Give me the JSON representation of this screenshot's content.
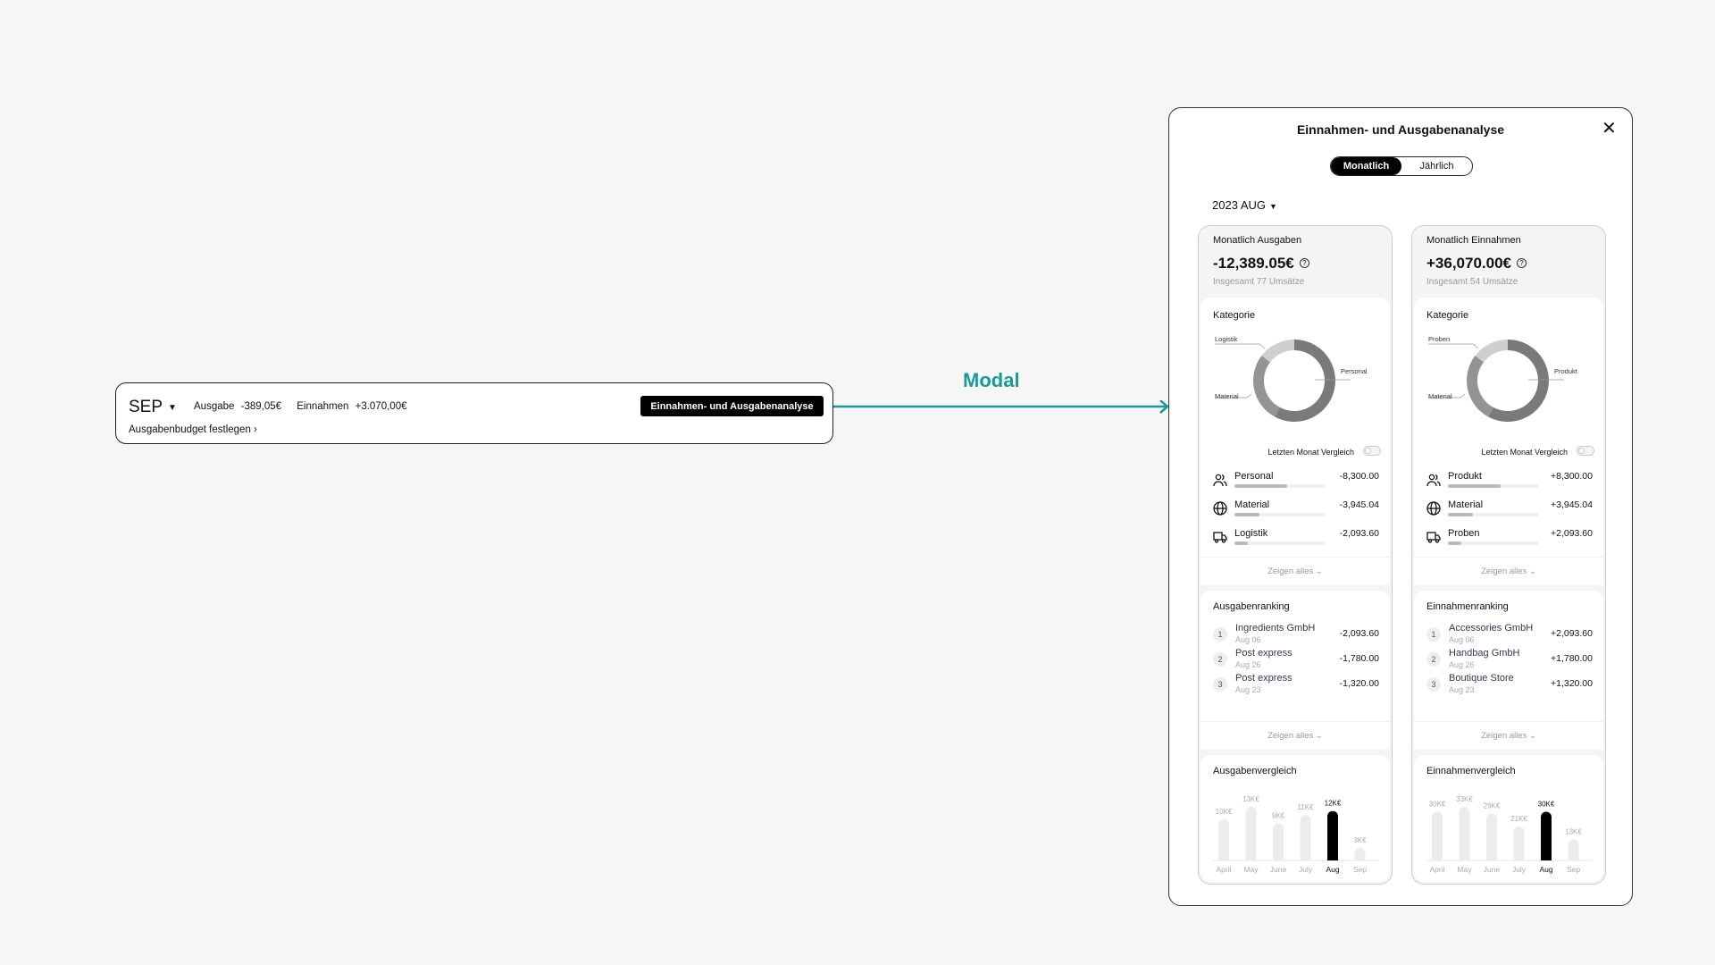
{
  "bar": {
    "month": "SEP",
    "expense_label": "Ausgabe",
    "expense": "-389,05€",
    "income_label": "Einnahmen",
    "income": "+3.070,00€",
    "budget_link": "Ausgabenbudget festlegen",
    "analyse_button": "Einnahmen- und Ausgabenanalyse"
  },
  "annotation": {
    "label": "Modal",
    "color": "#1a9a9a"
  },
  "modal": {
    "title": "Einnahmen- und Ausgabenanalyse",
    "tabs": [
      "Monatlich",
      "Jährlich"
    ],
    "active_tab": "Monatlich",
    "period": "2023 AUG",
    "panels": [
      {
        "title": "Monatlich Ausgaben",
        "amount": "-12,389.05€",
        "subtitle": "Insgesamt 77 Umsätze",
        "category_title": "Kategorie",
        "compare_label": "Letzten Monat Vergleich",
        "compare_on": false,
        "categories": [
          {
            "name": "Personal",
            "icon": "users-icon",
            "value": "-8,300.00",
            "amount": 8300
          },
          {
            "name": "Material",
            "icon": "globe-icon",
            "value": "-3,945.04",
            "amount": 3945.04
          },
          {
            "name": "Logistik",
            "icon": "truck-icon",
            "value": "-2,093.60",
            "amount": 2093.6
          }
        ],
        "show_all": "Zeigen alles",
        "ranking_title": "Ausgabenranking",
        "ranking": [
          {
            "rank": "1",
            "name": "Ingredients GmbH",
            "date": "Aug 06",
            "value": "-2,093.60"
          },
          {
            "rank": "2",
            "name": "Post express",
            "date": "Aug 26",
            "value": "-1,780.00"
          },
          {
            "rank": "3",
            "name": "Post express",
            "date": "Aug 23",
            "value": "-1,320.00"
          }
        ],
        "chart_title": "Ausgabenvergleich",
        "chart_data": {
          "type": "bar",
          "categories": [
            "April",
            "May",
            "June",
            "July",
            "Aug",
            "Sep"
          ],
          "values": [
            10,
            13,
            9,
            11,
            12,
            3
          ],
          "data_labels": [
            "10K€",
            "13K€",
            "9K€",
            "11K€",
            "12K€",
            "3K€"
          ],
          "highlight": "Aug"
        }
      },
      {
        "title": "Monatlich Einnahmen",
        "amount": "+36,070.00€",
        "subtitle": "Insgesamt 54 Umsätze",
        "category_title": "Kategorie",
        "compare_label": "Letzten Monat Vergleich",
        "compare_on": false,
        "categories": [
          {
            "name": "Produkt",
            "icon": "users-icon",
            "value": "+8,300.00",
            "amount": 8300
          },
          {
            "name": "Material",
            "icon": "globe-icon",
            "value": "+3,945.04",
            "amount": 3945.04
          },
          {
            "name": "Proben",
            "icon": "truck-icon",
            "value": "+2,093.60",
            "amount": 2093.6
          }
        ],
        "show_all": "Zeigen alles",
        "ranking_title": "Einnahmenranking",
        "ranking": [
          {
            "rank": "1",
            "name": "Accessories GmbH",
            "date": "Aug 06",
            "value": "+2,093.60"
          },
          {
            "rank": "2",
            "name": "Handbag GmbH",
            "date": "Aug 26",
            "value": "+1,780.00"
          },
          {
            "rank": "3",
            "name": "Boutique Store",
            "date": "Aug 23",
            "value": "+1,320.00"
          }
        ],
        "chart_title": "Einnahmenvergleich",
        "chart_data": {
          "type": "bar",
          "categories": [
            "April",
            "May",
            "June",
            "July",
            "Aug",
            "Sep"
          ],
          "values": [
            30,
            33,
            29,
            21,
            30,
            13
          ],
          "data_labels": [
            "30K€",
            "33K€",
            "29K€",
            "21K€",
            "30K€",
            "13K€"
          ],
          "highlight": "Aug"
        }
      }
    ]
  }
}
